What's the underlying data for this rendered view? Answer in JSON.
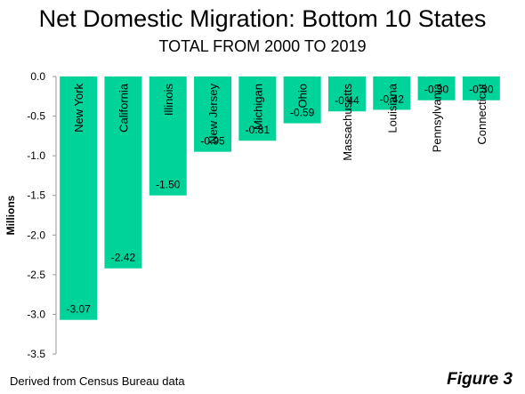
{
  "title": "Net Domestic Migration: Bottom 10 States",
  "subtitle": "TOTAL FROM 2000 TO 2019",
  "footer": {
    "source": "Derived from Census Bureau data",
    "figure_label": "Figure 3"
  },
  "colors": {
    "bar": "#00D39A",
    "axis": "#999999",
    "text": "#000000"
  },
  "chart_data": {
    "type": "bar",
    "title": "Net Domestic Migration: Bottom 10 States",
    "subtitle": "TOTAL FROM 2000 TO 2019",
    "xlabel": "",
    "ylabel": "Millions",
    "ylim": [
      -3.5,
      0.0
    ],
    "yticks": [
      0.0,
      -0.5,
      -1.0,
      -1.5,
      -2.0,
      -2.5,
      -3.0,
      -3.5
    ],
    "ytick_labels": [
      "0.0",
      "-0.5",
      "-1.0",
      "-1.5",
      "-2.0",
      "-2.5",
      "-3.0",
      "-3.5"
    ],
    "grid": false,
    "categories": [
      "New York",
      "California",
      "Illinois",
      "New Jersey",
      "Michigan",
      "Ohio",
      "Massachusetts",
      "Louisiana",
      "Pennsylvania",
      "Connecticut"
    ],
    "values": [
      -3.07,
      -2.42,
      -1.5,
      -0.95,
      -0.81,
      -0.59,
      -0.44,
      -0.42,
      -0.3,
      -0.3
    ],
    "value_labels": [
      "-3.07",
      "-2.42",
      "-1.50",
      "-0.95",
      "-0.81",
      "-0.59",
      "-0.44",
      "-0.42",
      "-0.30",
      "-0.30"
    ]
  }
}
